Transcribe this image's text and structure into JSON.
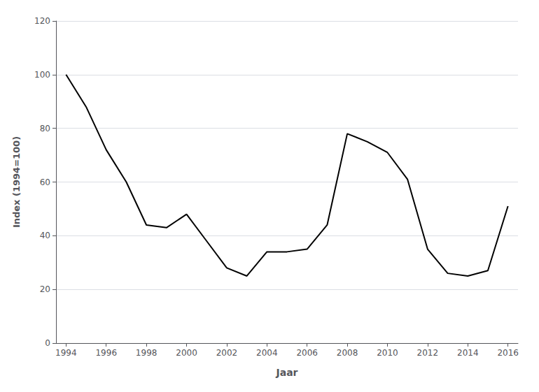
{
  "chart_data": {
    "type": "line",
    "x": [
      1994,
      1995,
      1996,
      1997,
      1998,
      1999,
      2000,
      2001,
      2002,
      2003,
      2004,
      2005,
      2006,
      2007,
      2008,
      2009,
      2010,
      2011,
      2012,
      2013,
      2014,
      2015,
      2016
    ],
    "values": [
      100,
      88,
      72,
      60,
      44,
      43,
      48,
      38,
      28,
      25,
      34,
      34,
      35,
      44,
      78,
      75,
      71,
      61,
      35,
      26,
      25,
      27,
      51
    ],
    "color": "#000000",
    "xlabel": "Jaar",
    "ylabel": "Index (1994=100)",
    "xlim": [
      1993.5,
      2016.5
    ],
    "xticks": [
      1994,
      1996,
      1998,
      2000,
      2002,
      2004,
      2006,
      2008,
      2010,
      2012,
      2014,
      2016
    ],
    "ylim": [
      0,
      120
    ],
    "yticks": [
      0,
      20,
      40,
      60,
      80,
      100,
      120
    ],
    "grid": true
  }
}
